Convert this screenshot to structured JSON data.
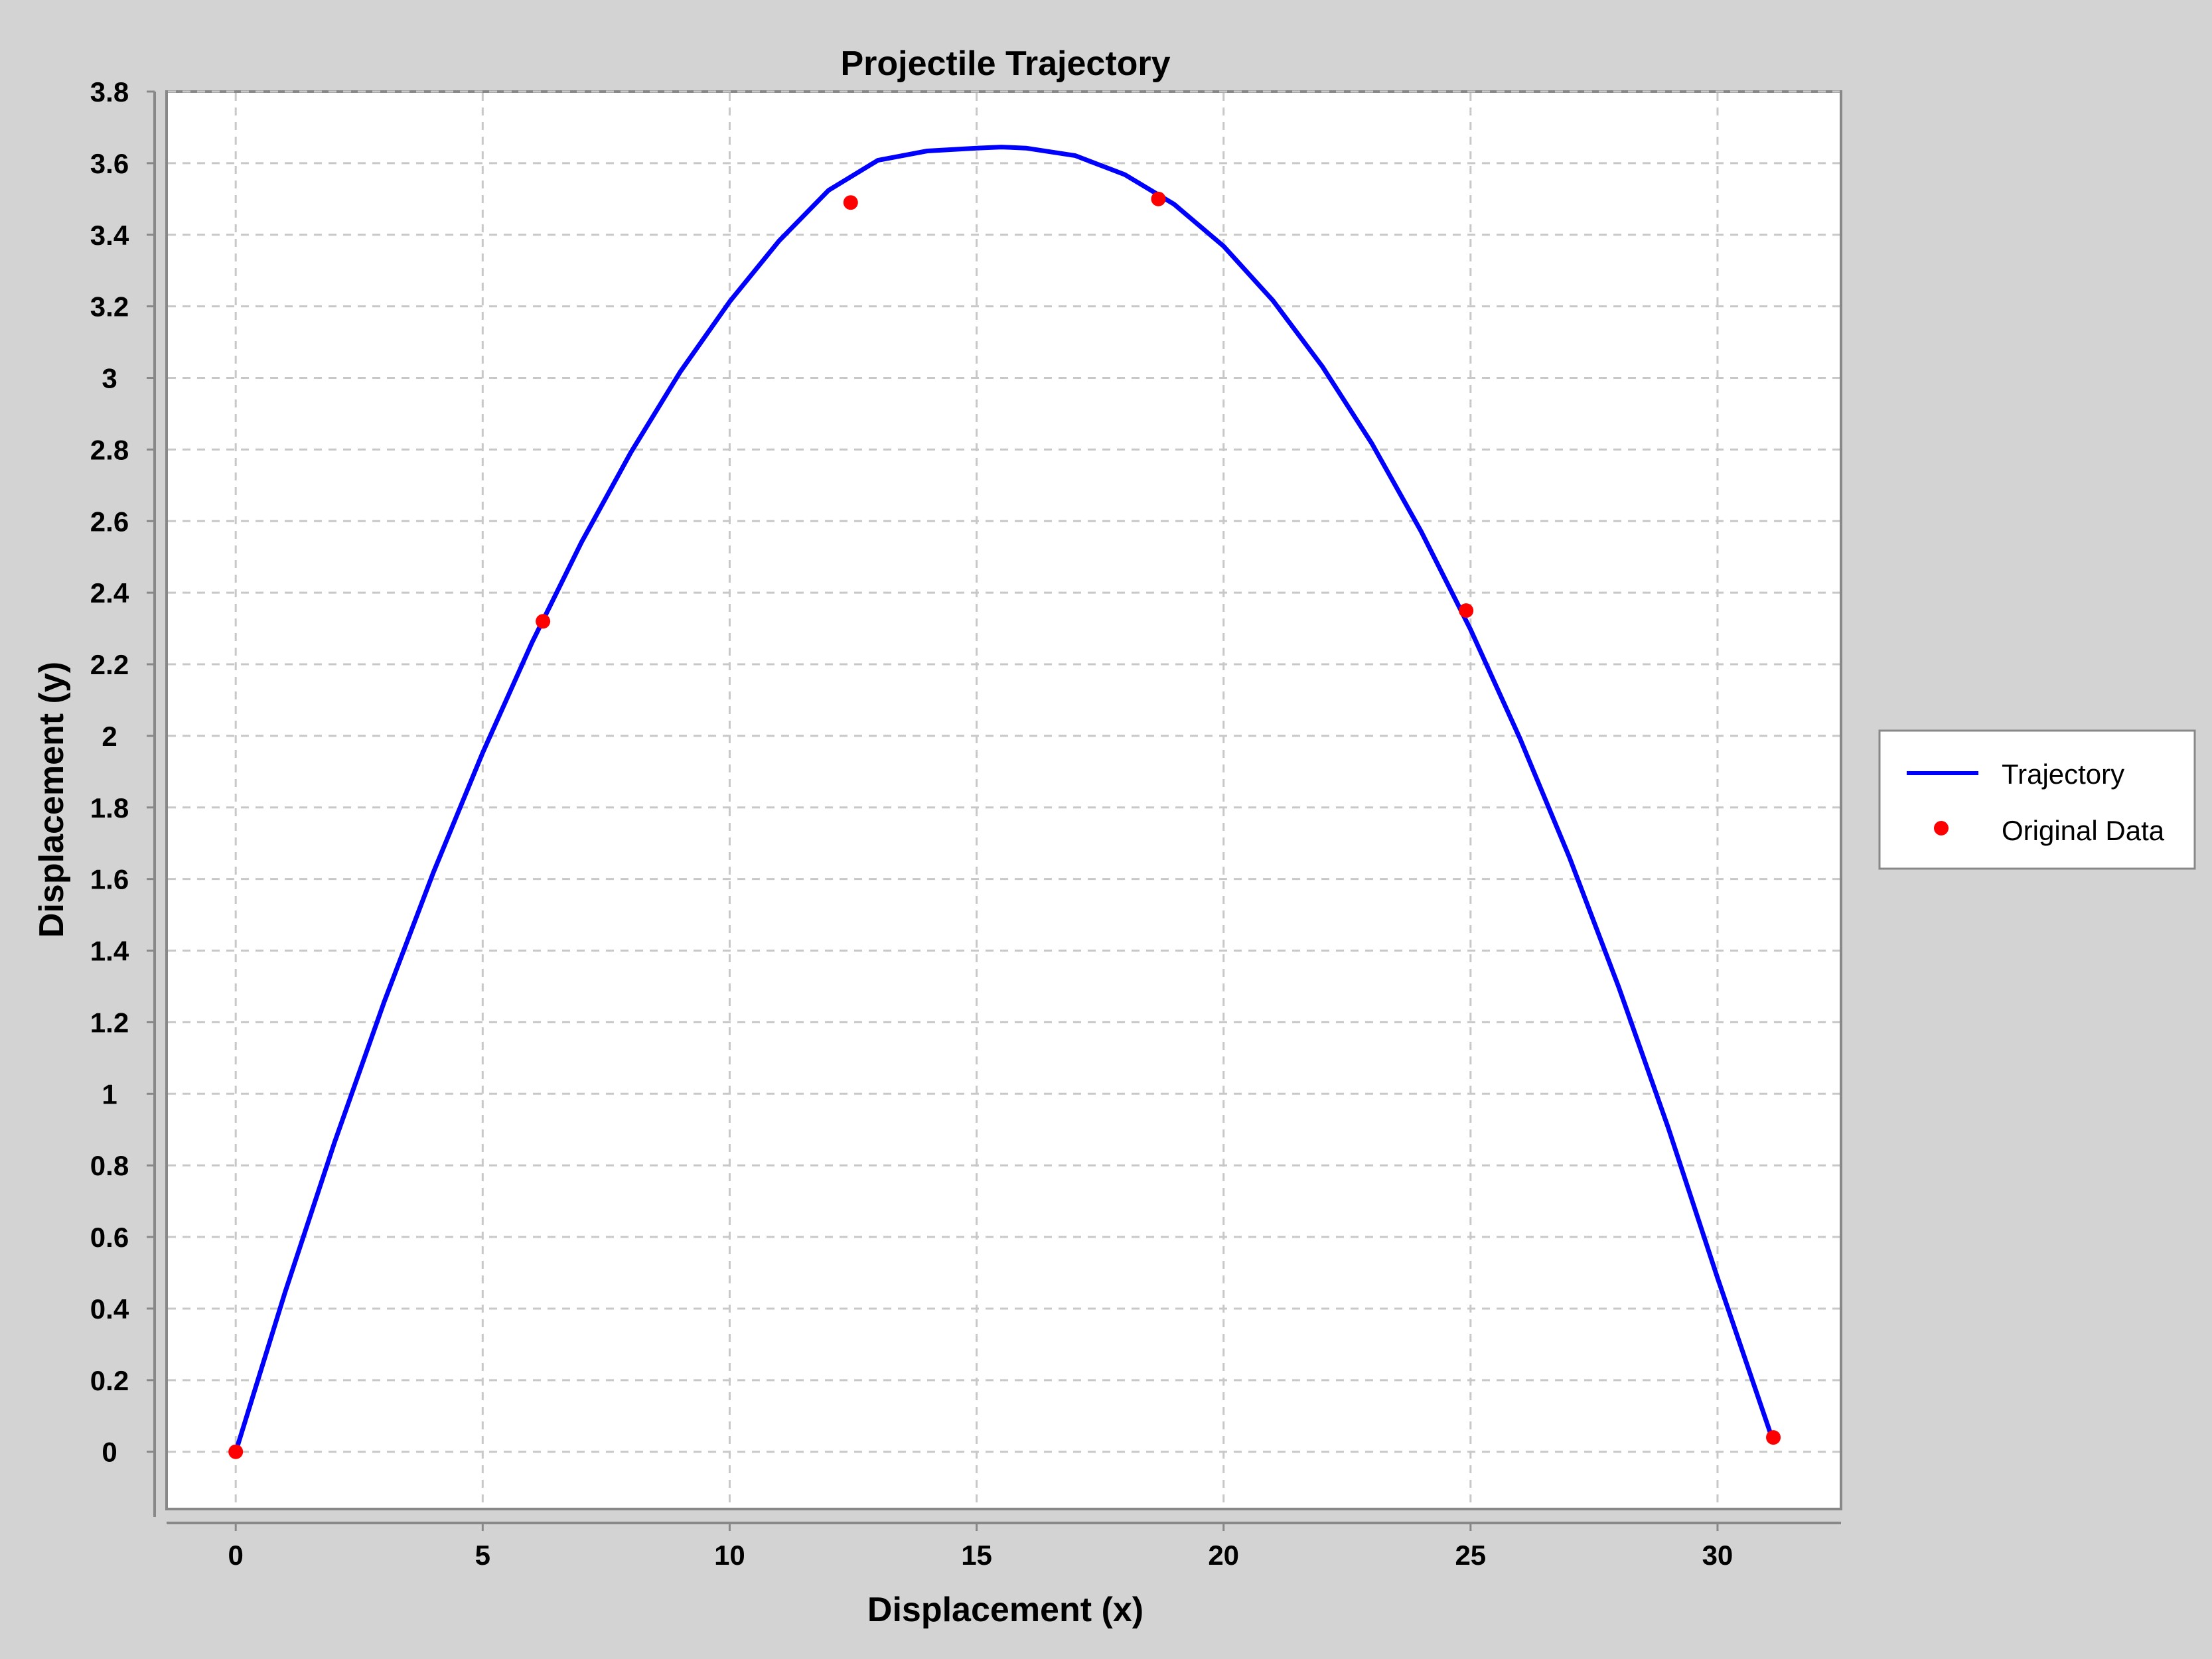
{
  "chart_data": {
    "type": "line",
    "title": "Projectile Trajectory",
    "xlabel": "Displacement (x)",
    "ylabel": "Displacement (y)",
    "xlim": [
      -1.4,
      32.5
    ],
    "ylim": [
      -0.16,
      3.8
    ],
    "x_ticks": [
      "0",
      "5",
      "10",
      "15",
      "20",
      "25",
      "30"
    ],
    "x_tick_values": [
      0,
      5,
      10,
      15,
      20,
      25,
      30
    ],
    "y_ticks": [
      "0",
      "0.2",
      "0.4",
      "0.6",
      "0.8",
      "1",
      "1.2",
      "1.4",
      "1.6",
      "1.8",
      "2",
      "2.2",
      "2.4",
      "2.6",
      "2.8",
      "3",
      "3.2",
      "3.4",
      "3.6",
      "3.8"
    ],
    "y_tick_values": [
      0,
      0.2,
      0.4,
      0.6,
      0.8,
      1,
      1.2,
      1.4,
      1.6,
      1.8,
      2,
      2.2,
      2.4,
      2.6,
      2.8,
      3,
      3.2,
      3.4,
      3.6,
      3.8
    ],
    "grid": true,
    "legend_position": "right",
    "series": [
      {
        "name": "Trajectory",
        "style": "line",
        "color": "#0000ff",
        "x": [
          0,
          1,
          2,
          3,
          4,
          5,
          6,
          7,
          8,
          9,
          10,
          11,
          12,
          13,
          14,
          15,
          15.5,
          16,
          17,
          18,
          19,
          20,
          21,
          22,
          23,
          24,
          25,
          26,
          27,
          28,
          29,
          30,
          31.1
        ],
        "y": [
          0,
          0.446,
          0.864,
          1.255,
          1.618,
          1.953,
          2.261,
          2.541,
          2.792,
          3.017,
          3.213,
          3.383,
          3.524,
          3.608,
          3.634,
          3.642,
          3.645,
          3.642,
          3.621,
          3.568,
          3.485,
          3.368,
          3.216,
          3.032,
          2.817,
          2.571,
          2.297,
          1.993,
          1.661,
          1.298,
          0.906,
          0.486,
          0.04
        ]
      },
      {
        "name": "Original Data",
        "style": "scatter",
        "color": "#ff0000",
        "x": [
          0,
          6.22,
          12.45,
          18.68,
          24.91,
          31.13
        ],
        "y": [
          0,
          2.32,
          3.49,
          3.5,
          2.35,
          0.04
        ]
      }
    ]
  }
}
